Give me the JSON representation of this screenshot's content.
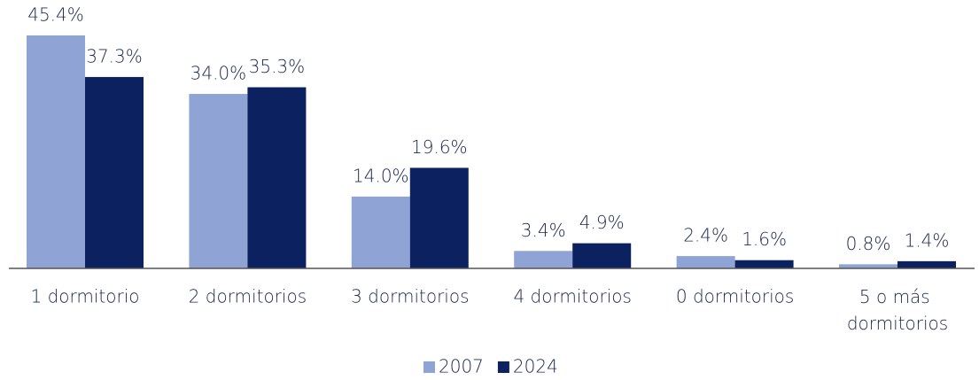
{
  "chart_data": {
    "type": "bar",
    "categories": [
      "1 dormitorio",
      "2 dormitorios",
      "3 dormitorios",
      "4 dormitorios",
      "0 dormitorios",
      "5 o más dormitorios"
    ],
    "series": [
      {
        "name": "2007",
        "color": "#8fa3d4",
        "values": [
          45.4,
          34.0,
          14.0,
          3.4,
          2.4,
          0.8
        ],
        "value_labels": [
          "45.4%",
          "34.0%",
          "14.0%",
          "3.4%",
          "2.4%",
          "0.8%"
        ]
      },
      {
        "name": "2024",
        "color": "#0c215f",
        "values": [
          37.3,
          35.3,
          19.6,
          4.9,
          1.6,
          1.4
        ],
        "value_labels": [
          "37.3%",
          "35.3%",
          "19.6%",
          "4.9%",
          "1.6%",
          "1.4%"
        ]
      }
    ],
    "legend": "bottom"
  }
}
